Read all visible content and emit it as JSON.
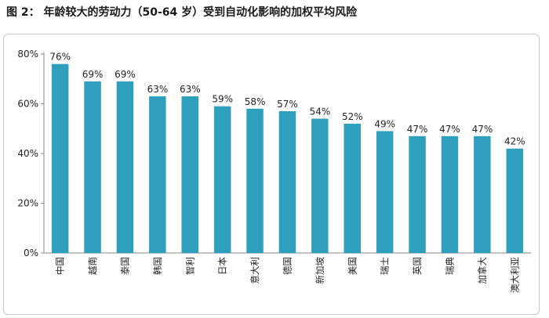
{
  "figure": {
    "title": "图 2： 年龄较大的劳动力（50-64 岁）受到自动化影响的加权平均风险"
  },
  "colors": {
    "bar": "#2e9fbd",
    "axis": "#8a8a8a",
    "text": "#222222"
  },
  "chart_data": {
    "type": "bar",
    "title": "",
    "xlabel": "",
    "ylabel": "",
    "categories": [
      "中国",
      "越南",
      "泰国",
      "韩国",
      "智利",
      "日本",
      "意大利",
      "德国",
      "新加坡",
      "美国",
      "瑞士",
      "英国",
      "瑞典",
      "加拿大",
      "澳大利亚"
    ],
    "values": [
      76,
      69,
      69,
      63,
      63,
      59,
      58,
      57,
      54,
      52,
      49,
      47,
      47,
      47,
      42
    ],
    "value_labels": [
      "76%",
      "69%",
      "69%",
      "63%",
      "63%",
      "59%",
      "58%",
      "57%",
      "54%",
      "52%",
      "49%",
      "47%",
      "47%",
      "47%",
      "42%"
    ],
    "yticks": [
      0,
      20,
      40,
      60,
      80
    ],
    "ytick_labels": [
      "0%",
      "20%",
      "40%",
      "60%",
      "80%"
    ],
    "ylim": [
      0,
      80
    ],
    "grid": false,
    "legend": "none"
  }
}
